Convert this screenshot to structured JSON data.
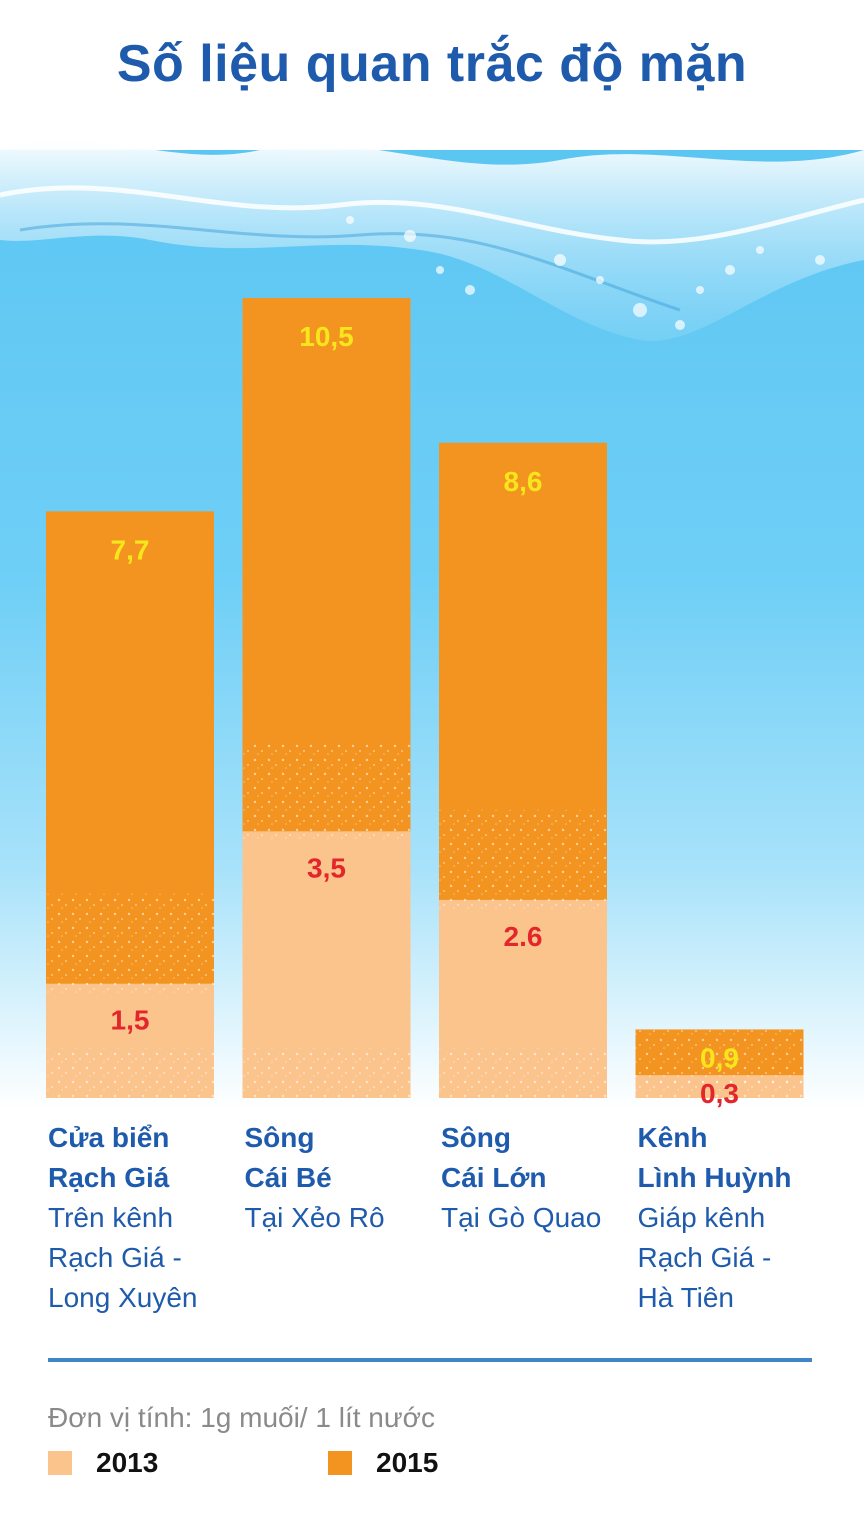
{
  "title": "Số liệu quan trắc độ mặn",
  "chart_data": {
    "type": "bar",
    "stacked_overlay": true,
    "categories": [
      {
        "name_lines": [
          "Cửa biển",
          "Rạch Giá"
        ],
        "sub_lines": [
          "Trên kênh",
          "Rạch Giá -",
          "Long Xuyên"
        ]
      },
      {
        "name_lines": [
          "Sông",
          "Cái Bé"
        ],
        "sub_lines": [
          "Tại Xẻo Rô"
        ]
      },
      {
        "name_lines": [
          "Sông",
          "Cái Lớn"
        ],
        "sub_lines": [
          "Tại Gò Quao"
        ]
      },
      {
        "name_lines": [
          "Kênh",
          "Lình Huỳnh"
        ],
        "sub_lines": [
          "Giáp kênh",
          "Rạch Giá -",
          "Hà Tiên"
        ]
      }
    ],
    "series": [
      {
        "name": "2013",
        "color": "#fbc48c",
        "label_color": "#e3262b",
        "values": [
          1.5,
          3.5,
          2.6,
          0.3
        ],
        "labels": [
          "1,5",
          "3,5",
          "2.6",
          "0,3"
        ]
      },
      {
        "name": "2015",
        "color": "#f39420",
        "label_color": "#f8e61c",
        "values": [
          7.7,
          10.5,
          8.6,
          0.9
        ],
        "labels": [
          "7,7",
          "10,5",
          "8,6",
          "0,9"
        ]
      }
    ],
    "ylim": [
      0,
      10.5
    ],
    "grid": false,
    "legend_position": "bottom-left"
  },
  "unit_note": "Đơn vị tính: 1g muối/ 1 lít nước",
  "legend": [
    {
      "label": "2013",
      "color": "#fbc48c"
    },
    {
      "label": "2015",
      "color": "#f39420"
    }
  ]
}
